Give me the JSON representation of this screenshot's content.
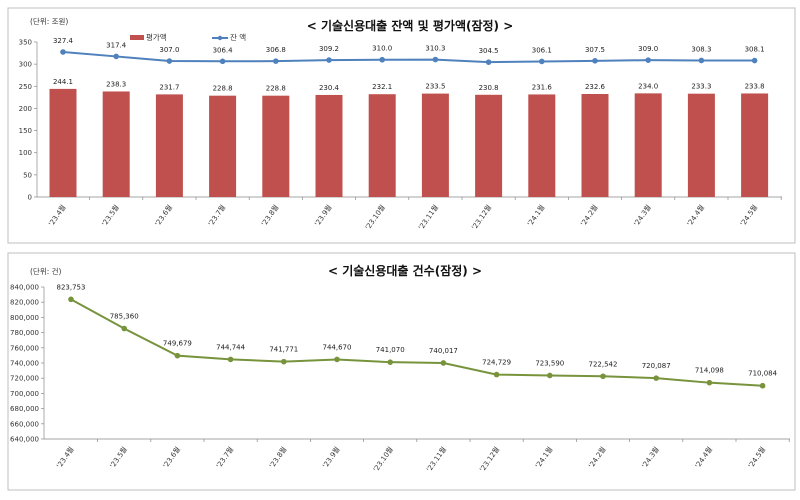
{
  "chart_data": [
    {
      "type": "bar+line",
      "title": "< 기술신용대출 잔액 및 평가액(잠정) >",
      "unit_label": "(단위: 조원)",
      "categories": [
        "'23.4월",
        "'23.5월",
        "'23.6월",
        "'23.7월",
        "'23.8월",
        "'23.9월",
        "'23.10월",
        "'23.11월",
        "'23.12월",
        "'24.1월",
        "'24.2월",
        "'24.3월",
        "'24.4월",
        "'24.5월"
      ],
      "series": [
        {
          "name": "평가액",
          "type": "bar",
          "color": "#C0504D",
          "values": [
            244.1,
            238.3,
            231.7,
            228.8,
            228.8,
            230.4,
            232.1,
            233.5,
            230.8,
            231.6,
            232.6,
            234.0,
            233.3,
            233.8
          ],
          "labels": [
            "244.1",
            "238.3",
            "231.7",
            "228.8",
            "228.8",
            "230.4",
            "232.1",
            "233.5",
            "230.8",
            "231.6",
            "232.6",
            "234.0",
            "233.3",
            "233.8"
          ]
        },
        {
          "name": "잔 액",
          "type": "line",
          "color": "#4F81BD",
          "values": [
            327.4,
            317.4,
            307.0,
            306.4,
            306.8,
            309.2,
            310.0,
            310.3,
            304.5,
            306.1,
            307.5,
            309.0,
            308.3,
            308.1
          ],
          "labels": [
            "327.4",
            "317.4",
            "307.0",
            "306.4",
            "306.8",
            "309.2",
            "310.0",
            "310.3",
            "304.5",
            "306.1",
            "307.5",
            "309.0",
            "308.3",
            "308.1"
          ]
        }
      ],
      "ylim": [
        0,
        350
      ],
      "yticks": [
        "0",
        "50",
        "100",
        "150",
        "200",
        "250",
        "300",
        "350"
      ],
      "ytick_values": [
        0,
        50,
        100,
        150,
        200,
        250,
        300,
        350
      ],
      "legend": "top-left",
      "grid": false
    },
    {
      "type": "line",
      "title": "< 기술신용대출 건수(잠정) >",
      "unit_label": "(단위: 건)",
      "categories": [
        "'23.4월",
        "'23.5월",
        "'23.6월",
        "'23.7월",
        "'23.8월",
        "'23.9월",
        "'23.10월",
        "'23.11월",
        "'23.12월",
        "'24.1월",
        "'24.2월",
        "'24.3월",
        "'24.4월",
        "'24.5월"
      ],
      "series": [
        {
          "color": "#77933C",
          "values": [
            823753,
            785360,
            749679,
            744744,
            741771,
            744670,
            741070,
            740017,
            724729,
            723590,
            722542,
            720087,
            714098,
            710084
          ],
          "labels": [
            "823,753",
            "785,360",
            "749,679",
            "744,744",
            "741,771",
            "744,670",
            "741,070",
            "740,017",
            "724,729",
            "723,590",
            "722,542",
            "720,087",
            "714,098",
            "710,084"
          ]
        }
      ],
      "ylim": [
        640000,
        840000
      ],
      "yticks": [
        "640,000",
        "660,000",
        "680,000",
        "700,000",
        "720,000",
        "740,000",
        "760,000",
        "780,000",
        "800,000",
        "820,000",
        "840,000"
      ],
      "ytick_values": [
        640000,
        660000,
        680000,
        700000,
        720000,
        740000,
        760000,
        780000,
        800000,
        820000,
        840000
      ],
      "grid": false
    }
  ]
}
